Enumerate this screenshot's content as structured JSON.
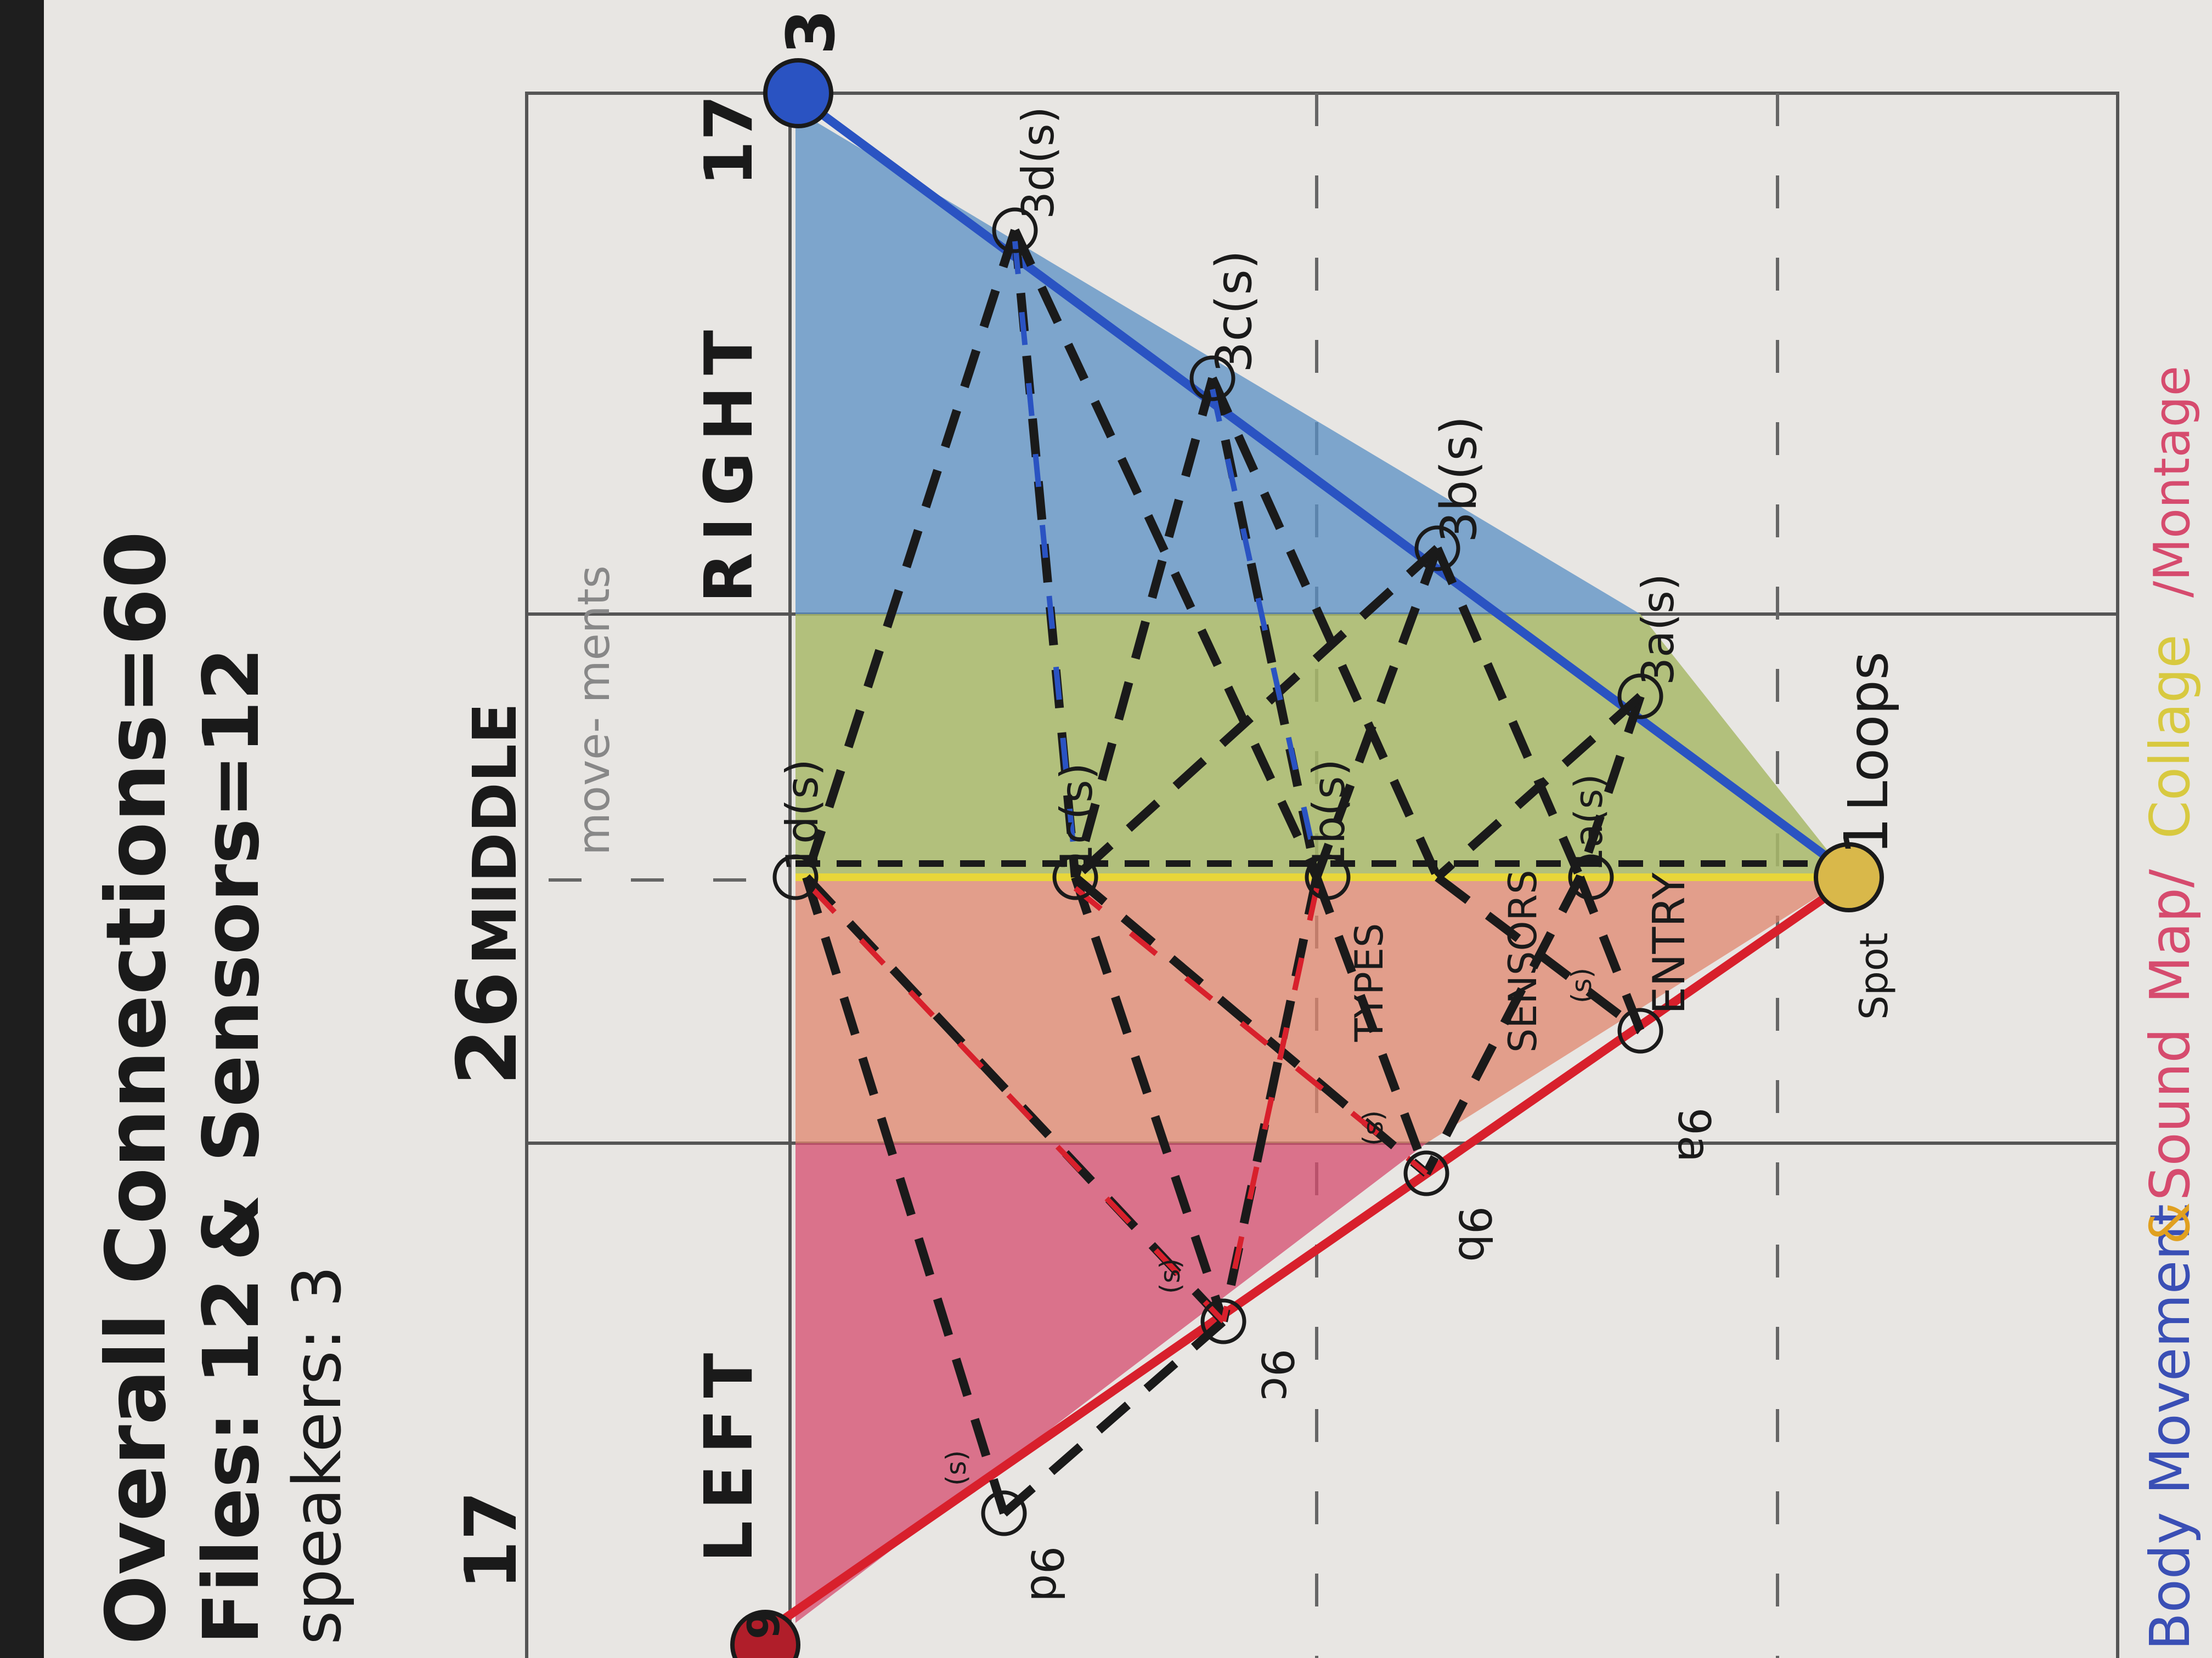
{
  "header": {
    "overall": "Overall Connections=60",
    "files": "Files: 12",
    "and_symbol": "&",
    "sensors": "Sensors=12",
    "speakers": "speakers: 3"
  },
  "grid": {
    "left_label": "LEFT",
    "middle_label": "MIDDLE",
    "middle_number": "26",
    "right_label": "RIGHT",
    "left_number": "17",
    "right_number": "17",
    "movements_note": "move- ments"
  },
  "nodes": {
    "top_corner": "3",
    "bottom_corner": "9",
    "apex_label": "Loops",
    "apex_count": "1",
    "apex_sub": "Spot",
    "entry": "ENTRY",
    "types": "TYPES",
    "sensors_note": "SENSORS",
    "right_edge": [
      "3d(s)",
      "3c(s)",
      "3b(s)",
      "3a(s)"
    ],
    "left_edge": [
      "9a",
      "9b",
      "9c",
      "9d"
    ],
    "midline": [
      "1d(s)",
      "1c(s)",
      "1b(s)",
      "1a(s)"
    ],
    "small_marks": [
      "(s)",
      "(s)",
      "(s)",
      "(s)"
    ]
  },
  "legend": {
    "body": "Body Movement",
    "amp": "&",
    "sound": "Sound",
    "map": "Map/",
    "collage": "Collage",
    "montage": "/Montage"
  },
  "colors": {
    "paper": "#e8e6e3",
    "red": "#d8202c",
    "pink_fill": "#d64b6e",
    "yellow": "#e8d63a",
    "blue": "#2a53c2",
    "blue_fill": "#5a8fc4",
    "green_fill": "#a8b86a",
    "ink": "#1a1a1a"
  }
}
